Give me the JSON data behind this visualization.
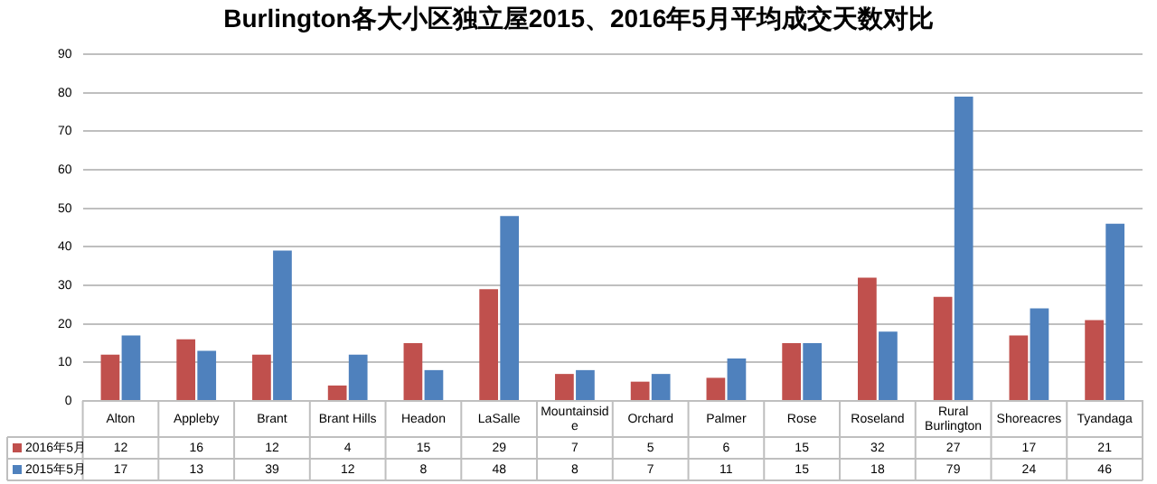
{
  "chart_data": {
    "type": "bar",
    "title": "Burlington各大小区独立屋2015、2016年5月平均成交天数对比",
    "categories": [
      "Alton",
      "Appleby",
      "Brant",
      "Brant Hills",
      "Headon",
      "LaSalle",
      "Mountainside",
      "Orchard",
      "Palmer",
      "Rose",
      "Roseland",
      "Rural Burlington",
      "Shoreacres",
      "Tyandaga"
    ],
    "series": [
      {
        "name": "2016年5月",
        "color": "#c0504d",
        "values": [
          12,
          16,
          12,
          4,
          15,
          29,
          7,
          5,
          6,
          15,
          32,
          27,
          17,
          21
        ]
      },
      {
        "name": "2015年5月",
        "color": "#4f81bd",
        "values": [
          17,
          13,
          39,
          12,
          8,
          48,
          8,
          7,
          11,
          15,
          18,
          79,
          24,
          46
        ]
      }
    ],
    "ylim": [
      0,
      90
    ],
    "yticks": [
      0,
      10,
      20,
      30,
      40,
      50,
      60,
      70,
      80,
      90
    ],
    "grid": "y",
    "data_labels": true,
    "legend": "bottom left"
  }
}
